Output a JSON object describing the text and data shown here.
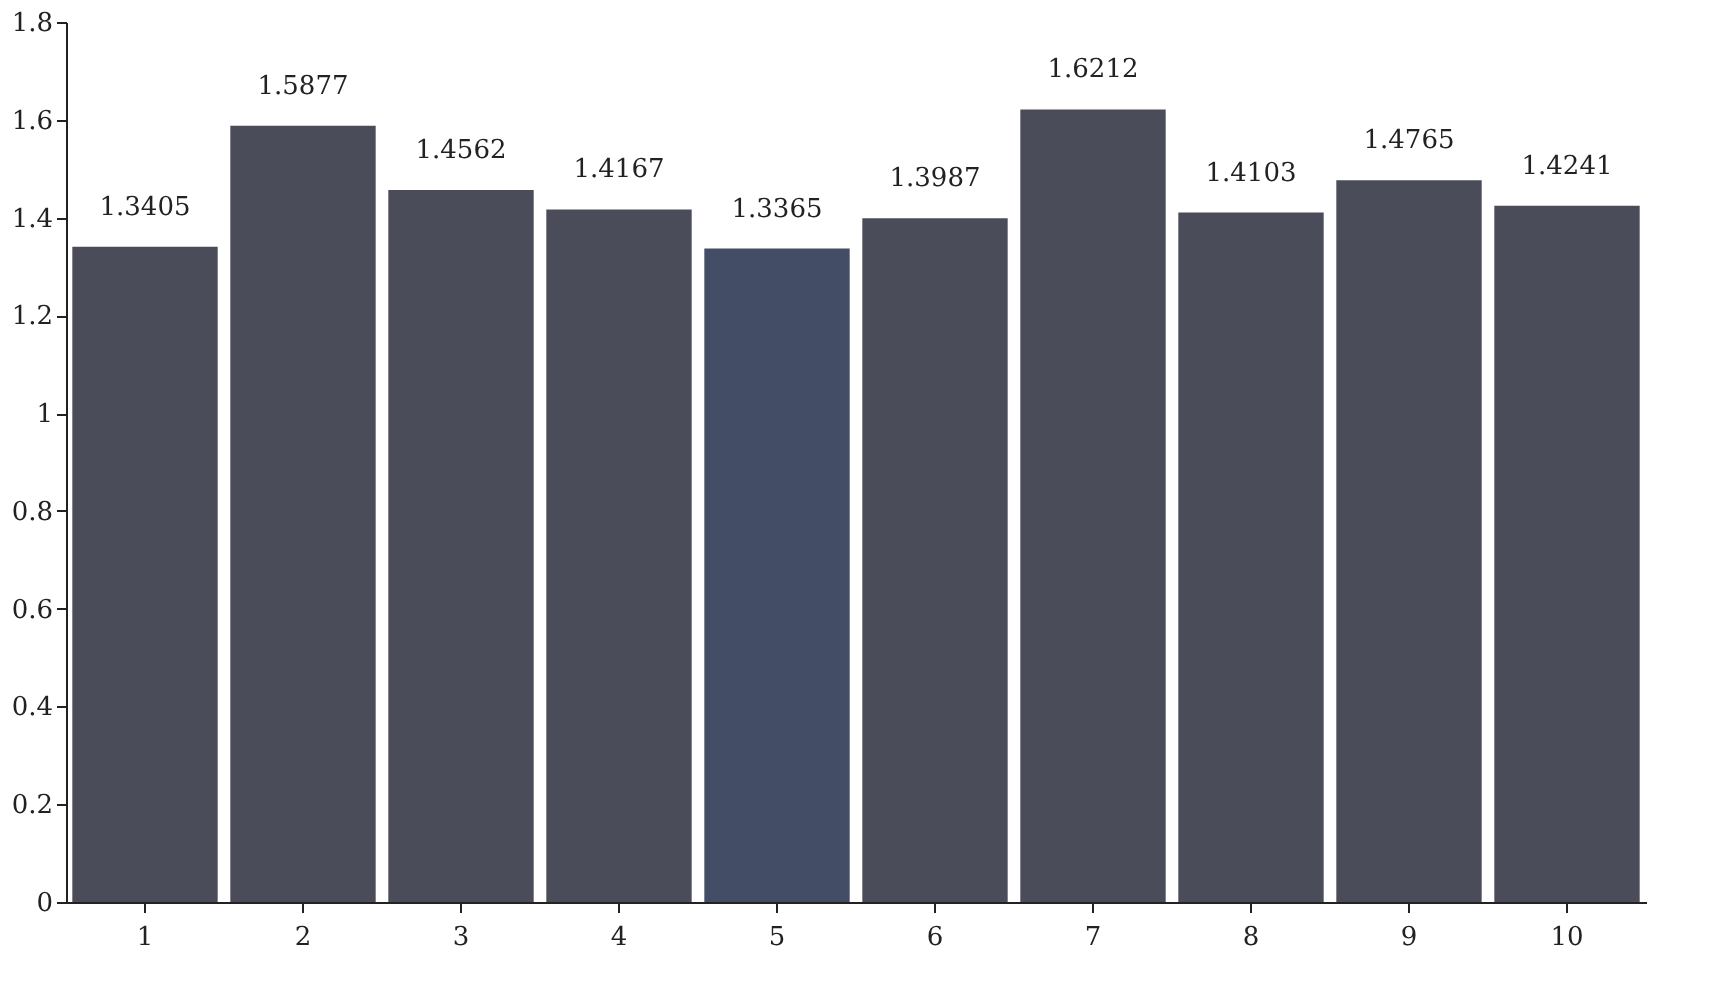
{
  "chart_data": {
    "type": "bar",
    "categories": [
      "1",
      "2",
      "3",
      "4",
      "5",
      "6",
      "7",
      "8",
      "9",
      "10"
    ],
    "values": [
      1.3405,
      1.5877,
      1.4562,
      1.4167,
      1.3365,
      1.3987,
      1.6212,
      1.4103,
      1.4765,
      1.4241
    ],
    "colors": [
      "#4a4c59",
      "#4a4c59",
      "#4a4c59",
      "#4a4c59",
      "#434e66",
      "#4a4c59",
      "#4a4c59",
      "#4a4c59",
      "#4a4c59",
      "#4a4c59"
    ],
    "ylim": [
      0,
      1.8
    ],
    "yticks": [
      0,
      0.2,
      0.4,
      0.6,
      0.8,
      1,
      1.2,
      1.4,
      1.6,
      1.8
    ],
    "data_labels": true,
    "grid": false
  }
}
